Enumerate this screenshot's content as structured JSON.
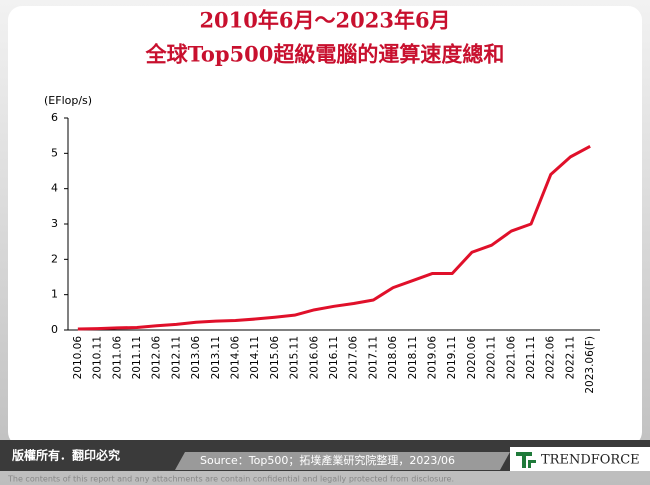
{
  "chart_data": {
    "type": "line",
    "title": "2010年6月～2023年6月",
    "subtitle": "全球Top500超級電腦的運算速度總和",
    "y_label": "(EFlop/s)",
    "categories": [
      "2010.06",
      "2010.11",
      "2011.06",
      "2011.11",
      "2012.06",
      "2012.11",
      "2013.06",
      "2013.11",
      "2014.06",
      "2014.11",
      "2015.06",
      "2015.11",
      "2016.06",
      "2016.11",
      "2017.06",
      "2017.11",
      "2018.06",
      "2018.11",
      "2019.06",
      "2019.11",
      "2020.06",
      "2020.11",
      "2021.06",
      "2021.11",
      "2022.06",
      "2022.11",
      "2023.06(F)"
    ],
    "values": [
      0.03,
      0.04,
      0.06,
      0.07,
      0.12,
      0.16,
      0.22,
      0.25,
      0.27,
      0.31,
      0.36,
      0.42,
      0.57,
      0.67,
      0.75,
      0.85,
      1.2,
      1.4,
      1.6,
      1.6,
      2.2,
      2.4,
      2.8,
      3.0,
      4.4,
      4.9,
      5.2
    ],
    "color": "#e0102a",
    "ylim": [
      0,
      6
    ],
    "yticks": [
      0,
      1,
      2,
      3,
      4,
      5,
      6
    ],
    "grid": false
  },
  "footer": {
    "rights": "版權所有．翻印必究",
    "source": "Source：Top500；拓墣產業研究院整理，2023/06",
    "logo": "TRENDFORCE",
    "disclaimer": "The contents of this report and any attachments are contain confidential and legally protected from disclosure."
  }
}
